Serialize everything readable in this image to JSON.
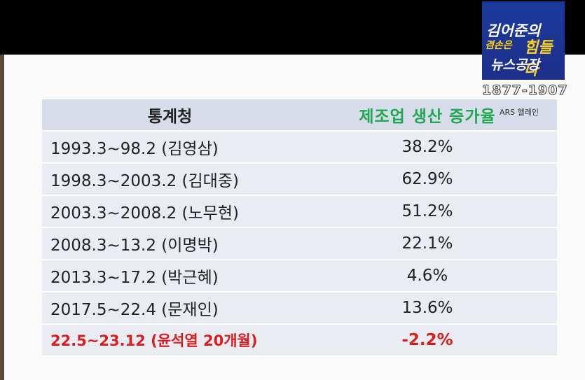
{
  "table": {
    "header": {
      "source": "통계청",
      "metric": "제조업 생산 증가율"
    },
    "rows": [
      {
        "period": "1993.3~98.2 (김영삼)",
        "value": "38.2%"
      },
      {
        "period": "1998.3~2003.2 (김대중)",
        "value": "62.9%"
      },
      {
        "period": "2003.3~2008.2 (노무현)",
        "value": "51.2%"
      },
      {
        "period": "2008.3~13.2 (이명박)",
        "value": "22.1%"
      },
      {
        "period": "2013.3~17.2 (박근혜)",
        "value": "4.6%"
      },
      {
        "period": "2017.5~22.4 (문재인)",
        "value": "13.6%"
      },
      {
        "period": "22.5~23.12 (윤석열 20개월)",
        "value": "-2.2%"
      }
    ]
  },
  "logo": {
    "line1": "김어준의",
    "line2a": "겸손은",
    "line2b": "힘들다",
    "line3": "뉴스공장",
    "phone": "1877-1907",
    "ars": "ARS 헬레인"
  },
  "colors": {
    "header_accent": "#1fa84f",
    "highlight": "#d81e1e",
    "logo_bg": "#1a3a9c"
  }
}
